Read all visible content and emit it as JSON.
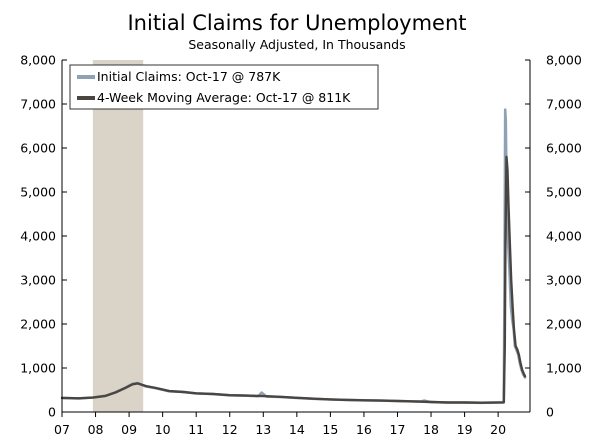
{
  "chart_data": {
    "type": "line",
    "title": "Initial Claims for Unemployment",
    "subtitle": "Seasonally Adjusted, In Thousands",
    "xlabel": "",
    "ylabel": "",
    "x_ticks": [
      "07",
      "08",
      "09",
      "10",
      "11",
      "12",
      "13",
      "14",
      "15",
      "16",
      "17",
      "18",
      "19",
      "20"
    ],
    "x_range": [
      2007.0,
      2020.95
    ],
    "ylim": [
      0,
      8000
    ],
    "y_ticks_left": [
      "0",
      "1,000",
      "2,000",
      "3,000",
      "4,000",
      "5,000",
      "6,000",
      "7,000",
      "8,000"
    ],
    "y_ticks_right": [
      "0",
      "1,000",
      "2,000",
      "3,000",
      "4,000",
      "5,000",
      "6,000",
      "7,000",
      "8,000"
    ],
    "grid": false,
    "legend_position": "top-left",
    "recession_shading": [
      2007.92,
      2009.42
    ],
    "series": [
      {
        "name": "Initial Claims: Oct-17 @ 787K",
        "color": "#8ea2b5",
        "x": [
          2007.0,
          2007.5,
          2007.92,
          2008.3,
          2008.6,
          2008.9,
          2009.1,
          2009.25,
          2009.5,
          2009.8,
          2010.2,
          2010.6,
          2011.0,
          2011.5,
          2012.0,
          2012.5,
          2012.85,
          2012.95,
          2013.1,
          2013.5,
          2014.0,
          2014.5,
          2015.0,
          2015.5,
          2016.0,
          2016.5,
          2017.0,
          2017.5,
          2017.7,
          2017.8,
          2018.0,
          2018.5,
          2019.0,
          2019.5,
          2019.9,
          2020.17,
          2020.19,
          2020.21,
          2020.23,
          2020.25,
          2020.27,
          2020.3,
          2020.34,
          2020.38,
          2020.42,
          2020.46,
          2020.5,
          2020.55,
          2020.6,
          2020.65,
          2020.7,
          2020.75,
          2020.8
        ],
        "values": [
          320,
          310,
          330,
          370,
          450,
          560,
          640,
          660,
          580,
          540,
          470,
          460,
          420,
          410,
          380,
          370,
          360,
          440,
          350,
          340,
          320,
          300,
          285,
          275,
          265,
          260,
          250,
          240,
          240,
          260,
          225,
          215,
          215,
          210,
          215,
          220,
          2900,
          6870,
          6600,
          5200,
          4400,
          3800,
          3200,
          2400,
          2100,
          1900,
          1500,
          1400,
          1300,
          1100,
          950,
          850,
          787
        ]
      },
      {
        "name": "4-Week Moving Average: Oct-17 @ 811K",
        "color": "#4a4540",
        "x": [
          2007.0,
          2007.5,
          2007.92,
          2008.3,
          2008.6,
          2008.9,
          2009.1,
          2009.25,
          2009.5,
          2009.8,
          2010.2,
          2010.6,
          2011.0,
          2011.5,
          2012.0,
          2012.5,
          2013.0,
          2013.5,
          2014.0,
          2014.5,
          2015.0,
          2015.5,
          2016.0,
          2016.5,
          2017.0,
          2017.5,
          2018.0,
          2018.5,
          2019.0,
          2019.5,
          2019.9,
          2020.17,
          2020.2,
          2020.22,
          2020.25,
          2020.28,
          2020.31,
          2020.35,
          2020.39,
          2020.43,
          2020.47,
          2020.52,
          2020.57,
          2020.62,
          2020.67,
          2020.72,
          2020.77,
          2020.8
        ],
        "values": [
          320,
          312,
          328,
          365,
          445,
          550,
          630,
          650,
          590,
          545,
          475,
          455,
          425,
          410,
          382,
          372,
          362,
          345,
          322,
          302,
          287,
          276,
          266,
          260,
          251,
          242,
          228,
          216,
          215,
          211,
          214,
          218,
          1500,
          4000,
          5800,
          5500,
          4700,
          3800,
          3000,
          2400,
          1900,
          1500,
          1420,
          1300,
          1100,
          950,
          860,
          811
        ]
      }
    ]
  }
}
